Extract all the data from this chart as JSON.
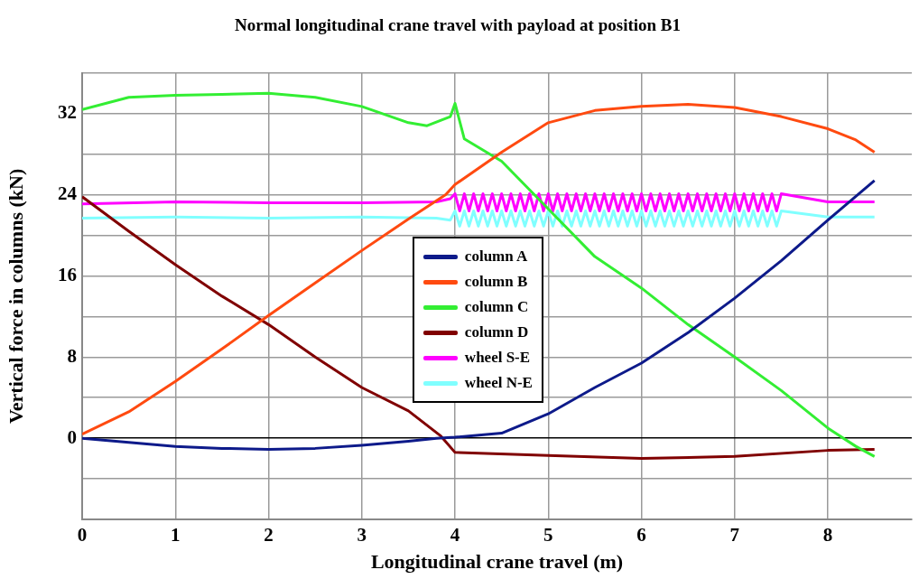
{
  "chart_data": {
    "type": "line",
    "title": "Normal longitudinal crane travel with payload at position B1",
    "xlabel": "Longitudinal crane travel (m)",
    "ylabel": "Vertical force in columns (kN)",
    "xlim": [
      0,
      8.9
    ],
    "xticks": [
      0,
      1,
      2,
      3,
      4,
      5,
      6,
      7,
      8
    ],
    "ylim": [
      -8,
      36
    ],
    "yticks": [
      {
        "value": -8,
        "label": null
      },
      {
        "value": -4,
        "label": null
      },
      0,
      {
        "value": 4,
        "label": null
      },
      8,
      {
        "value": 12,
        "label": null
      },
      16,
      {
        "value": 20,
        "label": null
      },
      24,
      {
        "value": 28,
        "label": null
      },
      32,
      {
        "value": 36,
        "label": null
      }
    ],
    "grid": true,
    "legend": "center",
    "series": [
      {
        "name": "column A",
        "color": "#0d1a8a",
        "x": [
          0,
          0.5,
          1,
          1.5,
          2,
          2.5,
          3,
          3.5,
          3.8,
          4,
          4.5,
          5,
          5.5,
          6,
          6.5,
          7,
          7.5,
          8,
          8.5
        ],
        "values": [
          0,
          -0.4,
          -0.8,
          -1,
          -1.1,
          -1,
          -0.7,
          -0.3,
          0,
          0.1,
          0.5,
          2.4,
          5,
          7.4,
          10.4,
          13.8,
          17.5,
          21.5,
          25.4
        ]
      },
      {
        "name": "column B",
        "color": "#ff4a10",
        "x": [
          0,
          0.5,
          1,
          1.5,
          2,
          2.5,
          3,
          3.5,
          3.9,
          4,
          4.5,
          5,
          5.5,
          6,
          6.5,
          7,
          7.5,
          8,
          8.3,
          8.5
        ],
        "values": [
          0.4,
          2.6,
          5.6,
          8.8,
          12.1,
          15.3,
          18.5,
          21.6,
          24,
          25,
          28.2,
          31.1,
          32.3,
          32.7,
          32.9,
          32.6,
          31.7,
          30.5,
          29.4,
          28.2
        ]
      },
      {
        "name": "column C",
        "color": "#33ee33",
        "x": [
          0,
          0.5,
          1,
          1.5,
          2,
          2.5,
          3,
          3.5,
          3.7,
          3.95,
          4,
          4.1,
          4.5,
          5,
          5.5,
          6,
          6.5,
          7,
          7.5,
          8,
          8.3,
          8.5
        ],
        "values": [
          32.4,
          33.6,
          33.8,
          33.9,
          34,
          33.6,
          32.7,
          31.1,
          30.8,
          31.7,
          33,
          29.5,
          27.3,
          22.6,
          17.9,
          14.8,
          11.2,
          8,
          4.7,
          1,
          -0.8,
          -1.8
        ]
      },
      {
        "name": "column D",
        "color": "#800000",
        "x": [
          0,
          0.5,
          1,
          1.5,
          2,
          2.5,
          3,
          3.5,
          3.85,
          4,
          5,
          6,
          7,
          8,
          8.5
        ],
        "values": [
          23.8,
          20.4,
          17.1,
          14,
          11.2,
          8,
          5,
          2.7,
          0.2,
          -1.4,
          -1.7,
          -2,
          -1.8,
          -1.2,
          -1.1
        ]
      },
      {
        "name": "wheel S-E",
        "color": "#ff00ff",
        "x": [
          0,
          1,
          2,
          3,
          3.8,
          3.95,
          4,
          4.05,
          4.1,
          4.15,
          4.2,
          4.25,
          4.3,
          4.35,
          4.4,
          4.45,
          4.5,
          4.55,
          4.6,
          4.65,
          4.7,
          4.75,
          4.8,
          4.85,
          4.9,
          4.95,
          5,
          5.05,
          5.1,
          5.15,
          5.2,
          5.25,
          5.3,
          5.35,
          5.4,
          5.45,
          5.5,
          5.55,
          5.6,
          5.65,
          5.7,
          5.75,
          5.8,
          5.85,
          5.9,
          5.95,
          6,
          6.05,
          6.1,
          6.15,
          6.2,
          6.25,
          6.3,
          6.35,
          6.4,
          6.45,
          6.5,
          6.55,
          6.6,
          6.65,
          6.7,
          6.75,
          6.8,
          6.85,
          6.9,
          6.95,
          7,
          7.05,
          7.1,
          7.15,
          7.2,
          7.25,
          7.3,
          7.35,
          7.4,
          7.45,
          7.5,
          8,
          8.5
        ],
        "values": [
          23.1,
          23.3,
          23.2,
          23.2,
          23.3,
          23.6,
          24.1,
          22.4,
          24.1,
          22.4,
          24.1,
          22.4,
          24.1,
          22.4,
          24.1,
          22.4,
          24.1,
          22.4,
          24.1,
          22.4,
          24.1,
          22.4,
          24.1,
          22.4,
          24.1,
          22.4,
          24.1,
          22.4,
          24.1,
          22.4,
          24.1,
          22.4,
          24.1,
          22.4,
          24.1,
          22.4,
          24.1,
          22.4,
          24.1,
          22.4,
          24.1,
          22.4,
          24.1,
          22.4,
          24.1,
          22.4,
          24.1,
          22.4,
          24.1,
          22.4,
          24.1,
          22.4,
          24.1,
          22.4,
          24.1,
          22.4,
          24.1,
          22.4,
          24.1,
          22.4,
          24.1,
          22.4,
          24.1,
          22.4,
          24.1,
          22.4,
          24.1,
          22.4,
          24.1,
          22.4,
          24.1,
          22.4,
          24.1,
          22.4,
          24.1,
          22.4,
          24.1,
          23.3,
          23.3
        ]
      },
      {
        "name": "wheel N-E",
        "color": "#80ffff",
        "x": [
          0,
          1,
          2,
          3,
          3.8,
          3.95,
          4,
          4.05,
          4.1,
          4.15,
          4.2,
          4.25,
          4.3,
          4.35,
          4.4,
          4.45,
          4.5,
          4.55,
          4.6,
          4.65,
          4.7,
          4.75,
          4.8,
          4.85,
          4.9,
          4.95,
          5,
          5.05,
          5.1,
          5.15,
          5.2,
          5.25,
          5.3,
          5.35,
          5.4,
          5.45,
          5.5,
          5.55,
          5.6,
          5.65,
          5.7,
          5.75,
          5.8,
          5.85,
          5.9,
          5.95,
          6,
          6.05,
          6.1,
          6.15,
          6.2,
          6.25,
          6.3,
          6.35,
          6.4,
          6.45,
          6.5,
          6.55,
          6.6,
          6.65,
          6.7,
          6.75,
          6.8,
          6.85,
          6.9,
          6.95,
          7,
          7.05,
          7.1,
          7.15,
          7.2,
          7.25,
          7.3,
          7.35,
          7.4,
          7.45,
          7.5,
          8,
          8.5
        ],
        "values": [
          21.7,
          21.8,
          21.7,
          21.8,
          21.7,
          21.5,
          22.4,
          20.9,
          22.4,
          20.9,
          22.4,
          20.9,
          22.4,
          20.9,
          22.4,
          20.9,
          22.4,
          20.9,
          22.4,
          20.9,
          22.4,
          20.9,
          22.4,
          20.9,
          22.4,
          20.9,
          22.4,
          20.9,
          22.4,
          20.9,
          22.4,
          20.9,
          22.4,
          20.9,
          22.4,
          20.9,
          22.4,
          20.9,
          22.4,
          20.9,
          22.4,
          20.9,
          22.4,
          20.9,
          22.4,
          20.9,
          22.4,
          20.9,
          22.4,
          20.9,
          22.4,
          20.9,
          22.4,
          20.9,
          22.4,
          20.9,
          22.4,
          20.9,
          22.4,
          20.9,
          22.4,
          20.9,
          22.4,
          20.9,
          22.4,
          20.9,
          22.4,
          20.9,
          22.4,
          20.9,
          22.4,
          20.9,
          22.4,
          20.9,
          22.4,
          20.9,
          22.4,
          21.8,
          21.8
        ]
      }
    ]
  }
}
